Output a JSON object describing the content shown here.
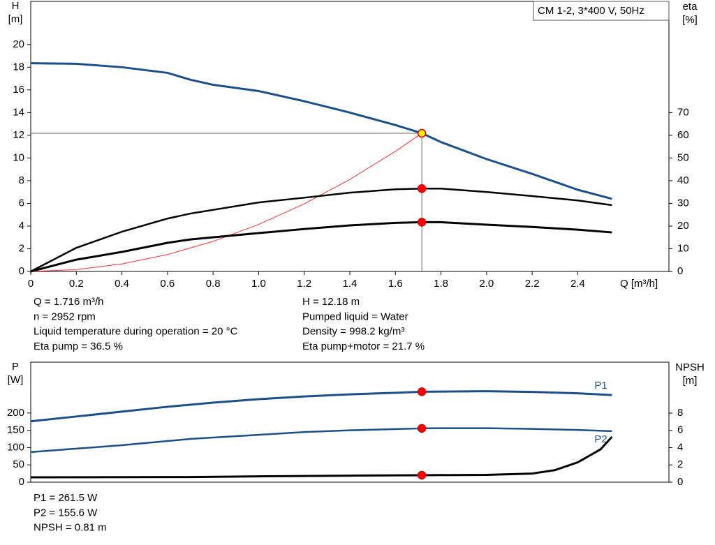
{
  "chart_data": [
    {
      "type": "line",
      "annotation": "CM 1-2, 3*400 V, 50Hz",
      "ylabel": [
        "H",
        "[m]"
      ],
      "y2label": [
        "eta",
        "[%]"
      ],
      "xlabel": "Q [m³/h]",
      "xlim": [
        0,
        2.8
      ],
      "xticks": [
        0,
        0.2,
        0.4,
        0.6,
        0.8,
        {
          "value": 1.0,
          "label": "1.0"
        },
        1.2,
        1.4,
        1.6,
        1.8,
        {
          "value": 2.0,
          "label": "2.0"
        },
        2.2,
        2.4
      ],
      "ylim": [
        0,
        23.8
      ],
      "yticks": [
        0,
        2,
        4,
        6,
        8,
        10,
        12,
        14,
        16,
        18,
        20
      ],
      "y2lim": [
        0,
        119
      ],
      "y2ticks": [
        0,
        10,
        20,
        30,
        40,
        50,
        60,
        70
      ],
      "series": [
        {
          "color": "#1a4f8a",
          "width": 3,
          "axis": "y",
          "x": [
            0,
            0.2,
            0.4,
            0.6,
            0.7,
            0.8,
            1.0,
            1.2,
            1.4,
            1.6,
            1.716,
            1.8,
            2.0,
            2.2,
            2.4,
            2.55
          ],
          "values": [
            18.35,
            18.3,
            18.0,
            17.5,
            16.9,
            16.45,
            15.9,
            15.0,
            14.0,
            12.9,
            12.18,
            11.4,
            9.9,
            8.6,
            7.2,
            6.4
          ]
        },
        {
          "color": "#ff3030",
          "width": 1,
          "axis": "y",
          "x": [
            0,
            0.2,
            0.4,
            0.6,
            0.8,
            1.0,
            1.2,
            1.4,
            1.6,
            1.716
          ],
          "values": [
            0,
            0.165,
            0.66,
            1.49,
            2.65,
            4.14,
            5.96,
            8.11,
            10.59,
            12.18
          ]
        },
        {
          "color": "#000000",
          "width": 2.5,
          "axis": "y2",
          "x": [
            0,
            0.2,
            0.4,
            0.6,
            0.7,
            1.0,
            1.2,
            1.4,
            1.6,
            1.716,
            1.8,
            2.0,
            2.2,
            2.4,
            2.55
          ],
          "values": [
            0,
            10.4,
            17.5,
            23.3,
            25.5,
            30.4,
            32.5,
            34.7,
            36.2,
            36.5,
            36.5,
            35.0,
            33.2,
            31.3,
            29.2
          ]
        },
        {
          "color": "#000000",
          "width": 3,
          "axis": "y2",
          "x": [
            0,
            0.2,
            0.4,
            0.6,
            0.7,
            1.0,
            1.2,
            1.4,
            1.6,
            1.716,
            1.8,
            2.0,
            2.2,
            2.4,
            2.55
          ],
          "values": [
            0,
            5.2,
            8.6,
            12.6,
            14.1,
            16.9,
            18.7,
            20.3,
            21.4,
            21.7,
            21.7,
            20.6,
            19.6,
            18.4,
            17.2
          ]
        }
      ],
      "points": [
        {
          "x": 1.716,
          "value": 12.18,
          "axis": "y",
          "color": "#ffee00"
        },
        {
          "x": 1.716,
          "value": 36.5,
          "axis": "y2",
          "color": "#ff0000"
        },
        {
          "x": 1.716,
          "value": 21.7,
          "axis": "y2",
          "color": "#ff0000"
        }
      ],
      "info": [
        "Q = 1.716 m³/h",
        "n = 2952 rpm",
        "Liquid temperature during operation = 20 °C",
        "Eta pump = 36.5 %",
        "H = 12.18 m",
        "Pumped liquid = Water",
        "Density = 998.2 kg/m³",
        "Eta pump+motor = 21.7 %"
      ]
    },
    {
      "type": "line",
      "ylabel": [
        "P",
        "[W]"
      ],
      "y2label": [
        "NPSH",
        "[m]"
      ],
      "xlim": [
        0,
        2.8
      ],
      "ylim": [
        0,
        347
      ],
      "yticks": [
        0,
        50,
        100,
        150,
        200
      ],
      "y2lim": [
        0,
        13.9
      ],
      "y2ticks": [
        0,
        2,
        4,
        6,
        8
      ],
      "series": [
        {
          "name": "P1",
          "color": "#1a4f8a",
          "width": 3,
          "axis": "y",
          "x": [
            0,
            0.2,
            0.4,
            0.6,
            0.7,
            0.8,
            1.0,
            1.2,
            1.4,
            1.6,
            1.716,
            1.8,
            2.0,
            2.2,
            2.4,
            2.55
          ],
          "values": [
            176,
            190,
            204,
            218,
            224,
            230,
            240,
            248,
            254,
            258.5,
            261.5,
            262,
            263,
            261,
            257,
            252
          ]
        },
        {
          "name": "P2",
          "color": "#1a4f8a",
          "width": 2.5,
          "axis": "y",
          "x": [
            0,
            0.2,
            0.4,
            0.6,
            0.7,
            0.8,
            1.0,
            1.2,
            1.4,
            1.6,
            1.716,
            1.8,
            2.0,
            2.2,
            2.4,
            2.55
          ],
          "values": [
            87,
            97,
            107,
            119,
            125,
            129,
            137,
            145,
            150,
            153.5,
            155.6,
            156,
            156,
            154,
            151,
            147.5
          ]
        },
        {
          "color": "#000000",
          "width": 3,
          "axis": "y2",
          "x": [
            0,
            0.7,
            1.0,
            1.2,
            1.4,
            1.716,
            2.0,
            2.2,
            2.3,
            2.4,
            2.5,
            2.55
          ],
          "values": [
            0.57,
            0.6,
            0.68,
            0.72,
            0.76,
            0.81,
            0.85,
            1.0,
            1.4,
            2.3,
            3.8,
            5.25
          ]
        }
      ],
      "points": [
        {
          "x": 1.716,
          "value": 261.5,
          "axis": "y",
          "color": "#ff0000"
        },
        {
          "x": 1.716,
          "value": 155.6,
          "axis": "y",
          "color": "#ff0000"
        },
        {
          "x": 1.716,
          "value": 0.81,
          "axis": "y2",
          "color": "#ff0000"
        }
      ],
      "info": [
        "P1 = 261.5 W",
        "P2 = 155.6 W",
        "NPSH = 0.81 m"
      ]
    }
  ]
}
